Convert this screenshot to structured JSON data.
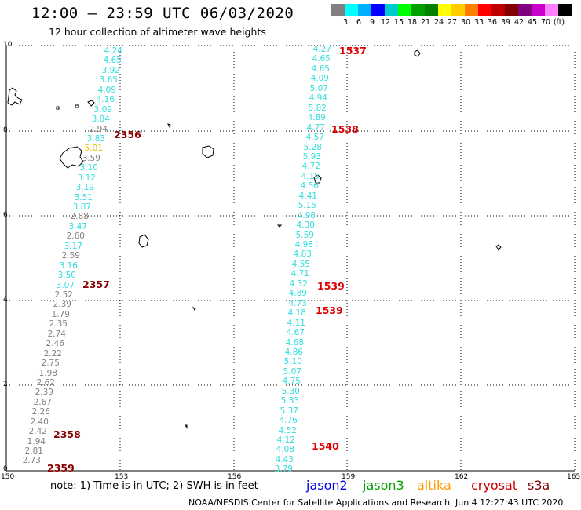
{
  "header": {
    "title": "12:00 – 23:59 UTC 06/03/2020",
    "subtitle": "12 hour collection of altimeter wave heights"
  },
  "scale": {
    "colors": [
      "#808080",
      "#00ffff",
      "#00b0ff",
      "#0000ff",
      "#00cccc",
      "#00ff00",
      "#00a000",
      "#008000",
      "#ffff00",
      "#ffcc00",
      "#ff8000",
      "#ff0000",
      "#c00000",
      "#800000",
      "#800080",
      "#cc00cc",
      "#ff80ff",
      "#000000"
    ],
    "labels": [
      "3",
      "6",
      "9",
      "12",
      "15",
      "18",
      "21",
      "24",
      "27",
      "30",
      "33",
      "36",
      "39",
      "42",
      "45",
      "70",
      "(ft)"
    ]
  },
  "axes": {
    "y_ticks": [
      "10",
      "8",
      "6",
      "4",
      "2",
      "0"
    ],
    "x_ticks": [
      "150",
      "153",
      "156",
      "159",
      "162",
      "165"
    ]
  },
  "tracks": [
    {
      "values": [
        "4.24",
        "4.65",
        "3.92",
        "3.65",
        "4.09",
        "4.16",
        "3.09",
        "3.84",
        "2.94",
        "3.83",
        "5.01",
        "3.59",
        "3.10",
        "3.12",
        "3.19",
        "3.51",
        "3.87",
        "2.88",
        "3.47",
        "2.60",
        "3.17",
        "2.59",
        "3.16",
        "3.50",
        "3.07",
        "2.52",
        "2.39",
        "1.79",
        "2.35",
        "2.74",
        "2.46",
        "2.22",
        "2.75",
        "1.98",
        "2.62",
        "2.39",
        "2.67",
        "2.26",
        "2.40",
        "2.42",
        "1.94",
        "2.81",
        "2.73"
      ],
      "colors": [
        "#33dddd",
        "#33dddd",
        "#33dddd",
        "#33dddd",
        "#33dddd",
        "#33dddd",
        "#33dddd",
        "#33dddd",
        "#808080",
        "#33dddd",
        "#e8c000",
        "#808080",
        "#33dddd",
        "#33dddd",
        "#33dddd",
        "#33dddd",
        "#33dddd",
        "#808080",
        "#33dddd",
        "#808080",
        "#33dddd",
        "#808080",
        "#33dddd",
        "#33dddd",
        "#33dddd",
        "#808080",
        "#808080",
        "#808080",
        "#808080",
        "#808080",
        "#808080",
        "#808080",
        "#808080",
        "#808080",
        "#808080",
        "#808080",
        "#808080",
        "#808080",
        "#808080",
        "#808080",
        "#808080",
        "#808080",
        "#808080"
      ]
    },
    {
      "values": [
        "4.27",
        "4.65",
        "4.65",
        "4.09",
        "5.07",
        "4.94",
        "5.82",
        "4.89",
        "4.77",
        "4.57",
        "5.28",
        "5.93",
        "4.72",
        "4.15",
        "4.56",
        "4.41",
        "5.15",
        "4.98",
        "4.30",
        "5.59",
        "4.98",
        "4.83",
        "4.55",
        "4.71",
        "4.32",
        "4.89",
        "4.73",
        "4.18",
        "4.11",
        "4.67",
        "4.68",
        "4.86",
        "5.10",
        "5.07",
        "4.75",
        "5.30",
        "5.33",
        "5.37",
        "4.76",
        "4.52",
        "4.12",
        "4.08",
        "4.43",
        "3.79"
      ],
      "colors": [
        "#33dddd"
      ]
    }
  ],
  "time_labels": [
    {
      "text": "1537",
      "color": "#dd0000"
    },
    {
      "text": "2356",
      "color": "#8b0000"
    },
    {
      "text": "1538",
      "color": "#dd0000"
    },
    {
      "text": "2357",
      "color": "#8b0000"
    },
    {
      "text": "1539",
      "color": "#dd0000"
    },
    {
      "text": "1539",
      "color": "#dd0000"
    },
    {
      "text": "2358",
      "color": "#8b0000"
    },
    {
      "text": "1540",
      "color": "#dd0000"
    },
    {
      "text": "2359",
      "color": "#8b0000"
    }
  ],
  "footer": {
    "note": "note:  1) Time is in UTC;  2) SWH is in feet",
    "legend": [
      {
        "text": "jason2",
        "color": "#0000ee"
      },
      {
        "text": "jason3",
        "color": "#00a000"
      },
      {
        "text": "altika",
        "color": "#ff9900"
      },
      {
        "text": "cryosat",
        "color": "#cc0000"
      },
      {
        "text": "s3a",
        "color": "#800000"
      }
    ],
    "credit": "NOAA/NESDIS Center for Satellite Applications and Research",
    "timestamp": "Jun  4 12:27:43 UTC 2020"
  }
}
